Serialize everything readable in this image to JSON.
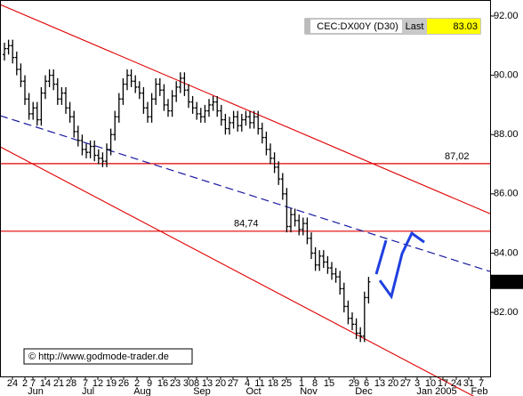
{
  "chart_data": {
    "type": "ohlc",
    "symbol": "CEC:DX00Y (D30)",
    "last_label": "Last",
    "last_value": 83.03,
    "source": "© http://www.godmode-trader.de",
    "color": "#000000",
    "x_labels": [
      "24",
      "2",
      "7",
      "14",
      "21",
      "28",
      "7",
      "12",
      "19",
      "26",
      "2",
      "9",
      "16",
      "23",
      "30",
      "8",
      "13",
      "20",
      "27",
      "4",
      "11",
      "18",
      "25",
      "1",
      "8",
      "15",
      "29",
      "6",
      "13",
      "20",
      "27",
      "3",
      "10",
      "17",
      "24",
      "31",
      "7"
    ],
    "months": [
      "Jun",
      "Jul",
      "Aug",
      "Sep",
      "Oct",
      "Nov",
      "Dec",
      "Jan 2005",
      "Feb"
    ],
    "open": [
      90.7,
      90.9,
      91.0,
      90.6,
      90.2,
      89.8,
      89.2,
      88.7,
      88.9,
      88.5,
      89.4,
      89.8,
      90.0,
      89.7,
      89.2,
      89.4,
      88.9,
      88.6,
      88.1,
      87.8,
      87.5,
      87.4,
      87.6,
      87.3,
      87.2,
      87.1,
      87.5,
      88.0,
      88.6,
      89.2,
      89.7,
      90.0,
      89.8,
      89.6,
      89.4,
      88.9,
      88.6,
      89.2,
      89.7,
      89.5,
      89.0,
      88.8,
      89.3,
      89.6,
      89.9,
      89.5,
      89.1,
      88.9,
      88.7,
      88.6,
      88.8,
      89.0,
      89.1,
      88.8,
      88.5,
      88.2,
      88.4,
      88.6,
      88.3,
      88.5,
      88.6,
      88.4,
      88.6,
      88.2,
      87.9,
      87.5,
      87.2,
      86.9,
      86.5,
      86.0,
      84.9,
      85.3,
      85.1,
      84.8,
      85.0,
      84.5,
      84.0,
      83.6,
      83.9,
      83.7,
      83.5,
      83.3,
      83.2,
      82.8,
      82.2,
      81.8,
      81.6,
      81.3,
      81.2,
      82.5
    ],
    "high": [
      91.1,
      91.2,
      91.2,
      90.8,
      90.4,
      90.0,
      89.4,
      89.1,
      89.1,
      89.6,
      90.0,
      90.2,
      90.2,
      89.9,
      89.6,
      89.6,
      89.1,
      88.8,
      88.3,
      88.0,
      87.7,
      87.8,
      87.8,
      87.5,
      87.4,
      87.7,
      88.2,
      88.8,
      89.4,
      89.9,
      90.2,
      90.2,
      90.0,
      89.8,
      89.6,
      89.1,
      89.4,
      89.9,
      89.9,
      89.7,
      89.2,
      89.5,
      89.8,
      90.1,
      90.1,
      89.7,
      89.3,
      89.1,
      88.9,
      89.0,
      89.2,
      89.3,
      89.3,
      89.0,
      88.7,
      88.6,
      88.8,
      88.8,
      88.7,
      88.8,
      88.8,
      88.8,
      88.8,
      88.4,
      88.1,
      87.7,
      87.4,
      87.1,
      86.7,
      86.2,
      85.5,
      85.5,
      85.3,
      85.2,
      85.2,
      84.7,
      84.2,
      84.1,
      84.1,
      83.9,
      83.7,
      83.5,
      83.4,
      83.0,
      82.4,
      82.0,
      81.8,
      81.5,
      82.7,
      83.2
    ],
    "low": [
      90.5,
      90.7,
      90.4,
      90.0,
      89.6,
      89.0,
      88.5,
      88.5,
      88.3,
      88.3,
      89.2,
      89.6,
      89.5,
      89.0,
      89.0,
      88.7,
      88.4,
      87.9,
      87.6,
      87.3,
      87.2,
      87.2,
      87.1,
      87.0,
      86.9,
      86.9,
      87.3,
      87.8,
      88.4,
      89.0,
      89.5,
      89.6,
      89.4,
      89.2,
      88.7,
      88.4,
      88.4,
      89.0,
      89.3,
      88.8,
      88.6,
      88.6,
      89.1,
      89.4,
      89.3,
      88.9,
      88.7,
      88.5,
      88.4,
      88.4,
      88.6,
      88.8,
      88.6,
      88.3,
      88.0,
      88.0,
      88.2,
      88.1,
      88.1,
      88.3,
      88.2,
      88.2,
      88.0,
      87.7,
      87.3,
      87.0,
      86.7,
      86.3,
      85.8,
      84.7,
      84.7,
      84.9,
      84.6,
      84.6,
      84.3,
      83.8,
      83.4,
      83.4,
      83.5,
      83.3,
      83.1,
      83.0,
      82.6,
      82.0,
      81.6,
      81.4,
      81.1,
      81.0,
      81.0,
      82.3
    ],
    "close": [
      90.9,
      91.0,
      90.6,
      90.2,
      89.8,
      89.2,
      88.7,
      88.9,
      88.5,
      89.4,
      89.8,
      90.0,
      89.7,
      89.2,
      89.4,
      88.9,
      88.6,
      88.1,
      87.8,
      87.5,
      87.4,
      87.6,
      87.3,
      87.2,
      87.1,
      87.5,
      88.0,
      88.6,
      89.2,
      89.7,
      90.0,
      89.8,
      89.6,
      89.4,
      88.9,
      88.6,
      89.2,
      89.7,
      89.5,
      89.0,
      88.8,
      89.3,
      89.6,
      89.9,
      89.5,
      89.1,
      88.9,
      88.7,
      88.6,
      88.8,
      89.0,
      89.1,
      88.8,
      88.5,
      88.2,
      88.4,
      88.6,
      88.3,
      88.5,
      88.6,
      88.4,
      88.6,
      88.2,
      87.9,
      87.5,
      87.2,
      86.9,
      86.5,
      86.0,
      84.9,
      85.3,
      85.1,
      84.8,
      85.0,
      84.5,
      84.0,
      83.6,
      83.9,
      83.7,
      83.5,
      83.3,
      83.2,
      82.8,
      82.2,
      81.8,
      81.6,
      81.3,
      81.2,
      82.5,
      83.03
    ],
    "ylim": [
      79.84,
      92.54
    ],
    "yticks": [
      {
        "value": 82,
        "label": "82.00"
      },
      {
        "value": 84,
        "label": "84.00"
      },
      {
        "value": 86,
        "label": "86.00"
      },
      {
        "value": 88,
        "label": "88.00"
      },
      {
        "value": 90,
        "label": "90.00"
      },
      {
        "value": 92,
        "label": "92.00"
      }
    ],
    "hlines": [
      {
        "value": 87.02,
        "label": "87,02",
        "color": "#e00000"
      },
      {
        "value": 84.74,
        "label": "84,74",
        "color": "#e00000"
      }
    ],
    "channels": [
      {
        "color": "#e00000",
        "values": [
          92.39,
          85.33
        ]
      },
      {
        "color": "#e00000",
        "values": [
          87.59,
          78.88
        ]
      }
    ],
    "trend": {
      "color": "#1a1aa0",
      "values": [
        88.64,
        83.38
      ]
    },
    "projection": {
      "color": "#1f3fe0",
      "pieces": [
        [
          83.29,
          84.43
        ],
        [
          83.08,
          82.54,
          83.98,
          84.67,
          84.37
        ]
      ]
    }
  }
}
